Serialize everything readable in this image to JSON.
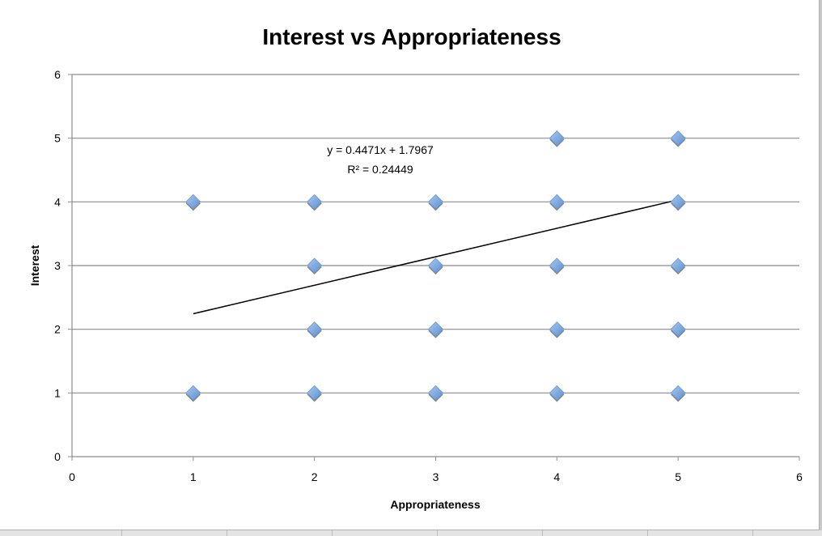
{
  "chart_data": {
    "type": "scatter",
    "title": "Interest vs Appropriateness",
    "xlabel": "Appropriateness",
    "ylabel": "Interest",
    "xlim": [
      0,
      6
    ],
    "ylim": [
      0,
      6
    ],
    "xticks": [
      "0",
      "1",
      "2",
      "3",
      "4",
      "5",
      "6"
    ],
    "yticks": [
      "0",
      "1",
      "2",
      "3",
      "4",
      "5",
      "6"
    ],
    "grid": "horizontal",
    "legend": "none",
    "marker_color": "#7ba7dc",
    "points": [
      {
        "x": 1,
        "y": 4
      },
      {
        "x": 1,
        "y": 1
      },
      {
        "x": 2,
        "y": 4
      },
      {
        "x": 2,
        "y": 3
      },
      {
        "x": 2,
        "y": 2
      },
      {
        "x": 2,
        "y": 1
      },
      {
        "x": 3,
        "y": 4
      },
      {
        "x": 3,
        "y": 3
      },
      {
        "x": 3,
        "y": 2
      },
      {
        "x": 3,
        "y": 1
      },
      {
        "x": 4,
        "y": 5
      },
      {
        "x": 4,
        "y": 4
      },
      {
        "x": 4,
        "y": 3
      },
      {
        "x": 4,
        "y": 2
      },
      {
        "x": 4,
        "y": 1
      },
      {
        "x": 5,
        "y": 5
      },
      {
        "x": 5,
        "y": 4
      },
      {
        "x": 5,
        "y": 3
      },
      {
        "x": 5,
        "y": 2
      },
      {
        "x": 5,
        "y": 1
      }
    ],
    "trendline": {
      "type": "linear",
      "slope": 0.4471,
      "intercept": 1.7967,
      "x_range": [
        1,
        5
      ],
      "equation": "y = 0.4471x + 1.7967",
      "r_squared": "R² = 0.24449"
    }
  }
}
